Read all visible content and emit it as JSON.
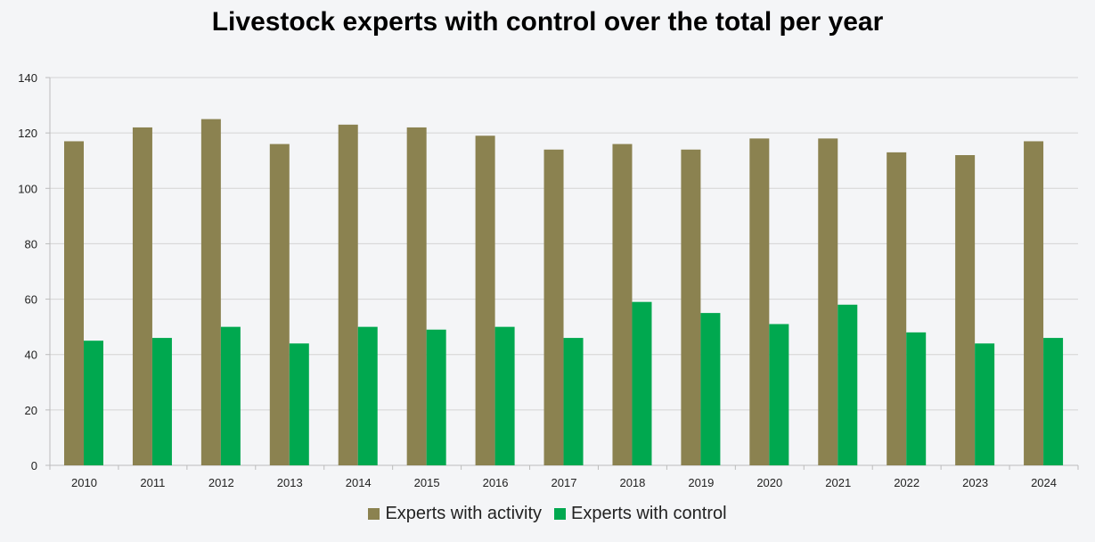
{
  "colors": {
    "activity": "#8b8250",
    "control": "#00a84f",
    "grid": "#d4d4d4",
    "axis": "#bcbcbc"
  },
  "chart_data": {
    "type": "bar",
    "title": "Livestock experts with control over the total per year",
    "xlabel": "",
    "ylabel": "",
    "ylim": [
      0,
      140
    ],
    "yticks": [
      0,
      20,
      40,
      60,
      80,
      100,
      120,
      140
    ],
    "grid": true,
    "legend_position": "bottom",
    "categories": [
      "2010",
      "2011",
      "2012",
      "2013",
      "2014",
      "2015",
      "2016",
      "2017",
      "2018",
      "2019",
      "2020",
      "2021",
      "2022",
      "2023",
      "2024"
    ],
    "series": [
      {
        "name": "Experts with activity",
        "values": [
          117,
          122,
          125,
          116,
          123,
          122,
          119,
          114,
          116,
          114,
          118,
          118,
          113,
          112,
          117
        ]
      },
      {
        "name": "Experts with control",
        "values": [
          45,
          46,
          50,
          44,
          50,
          49,
          50,
          46,
          59,
          55,
          51,
          58,
          48,
          44,
          46
        ]
      }
    ]
  }
}
